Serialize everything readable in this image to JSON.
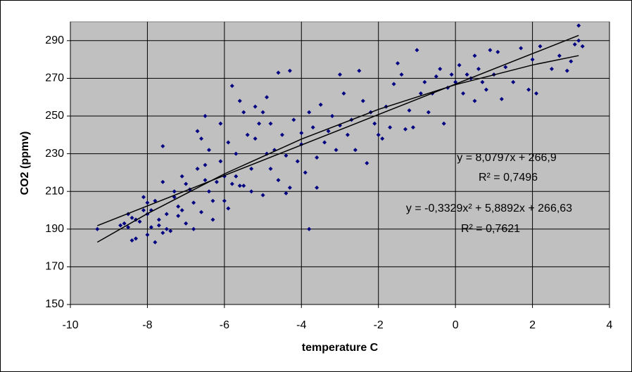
{
  "chart_data": {
    "type": "scatter",
    "xlabel": "temperature C",
    "ylabel": "CO2 (ppmv)",
    "xlim": [
      -10,
      4
    ],
    "xticks": [
      -10,
      -8,
      -6,
      -4,
      -2,
      0,
      2,
      4
    ],
    "ylim": [
      150,
      300
    ],
    "yticks": [
      150,
      170,
      190,
      210,
      230,
      250,
      270,
      290
    ],
    "grid": true,
    "plot_background": "#c0c0c0",
    "points": {
      "color": "#000080",
      "x": [
        -9.3,
        -8.7,
        -8.6,
        -8.5,
        -8.5,
        -8.4,
        -8.4,
        -8.3,
        -8.3,
        -8.2,
        -8.1,
        -8.1,
        -8.0,
        -8.0,
        -8.0,
        -7.9,
        -7.9,
        -7.8,
        -7.8,
        -7.7,
        -7.7,
        -7.6,
        -7.6,
        -7.6,
        -7.5,
        -7.5,
        -7.4,
        -7.3,
        -7.3,
        -7.2,
        -7.2,
        -7.1,
        -7.1,
        -7.0,
        -7.0,
        -6.9,
        -6.8,
        -6.8,
        -6.7,
        -6.7,
        -6.6,
        -6.6,
        -6.5,
        -6.5,
        -6.5,
        -6.4,
        -6.4,
        -6.3,
        -6.3,
        -6.2,
        -6.1,
        -6.1,
        -6.0,
        -6.0,
        -5.9,
        -5.9,
        -5.8,
        -5.8,
        -5.7,
        -5.7,
        -5.6,
        -5.6,
        -5.5,
        -5.5,
        -5.4,
        -5.3,
        -5.3,
        -5.2,
        -5.2,
        -5.1,
        -5.0,
        -5.0,
        -4.9,
        -4.9,
        -4.8,
        -4.8,
        -4.7,
        -4.6,
        -4.6,
        -4.5,
        -4.4,
        -4.4,
        -4.3,
        -4.3,
        -4.2,
        -4.1,
        -4.0,
        -4.0,
        -3.9,
        -3.8,
        -3.8,
        -3.7,
        -3.6,
        -3.6,
        -3.5,
        -3.4,
        -3.3,
        -3.2,
        -3.1,
        -3.0,
        -3.0,
        -2.9,
        -2.8,
        -2.7,
        -2.6,
        -2.5,
        -2.4,
        -2.3,
        -2.2,
        -2.1,
        -2.0,
        -1.9,
        -1.8,
        -1.7,
        -1.6,
        -1.5,
        -1.4,
        -1.3,
        -1.2,
        -1.1,
        -1.0,
        -0.9,
        -0.8,
        -0.7,
        -0.6,
        -0.5,
        -0.4,
        -0.3,
        -0.2,
        -0.1,
        0.0,
        0.1,
        0.2,
        0.3,
        0.4,
        0.5,
        0.5,
        0.6,
        0.7,
        0.8,
        0.9,
        1.0,
        1.1,
        1.2,
        1.3,
        1.5,
        1.7,
        1.9,
        2.0,
        2.1,
        2.2,
        2.5,
        2.7,
        2.9,
        3.0,
        3.1,
        3.2,
        3.2,
        3.3
      ],
      "values": [
        190,
        192,
        193,
        191,
        198,
        196,
        184,
        185,
        195,
        194,
        200,
        207,
        204,
        198,
        187,
        191,
        200,
        205,
        183,
        195,
        192,
        234,
        188,
        215,
        198,
        190,
        189,
        210,
        207,
        202,
        197,
        218,
        200,
        214,
        193,
        211,
        204,
        190,
        242,
        222,
        238,
        199,
        250,
        224,
        216,
        232,
        210,
        195,
        205,
        215,
        246,
        226,
        218,
        205,
        236,
        201,
        214,
        266,
        230,
        218,
        258,
        213,
        252,
        213,
        240,
        222,
        210,
        255,
        238,
        246,
        252,
        208,
        230,
        260,
        246,
        222,
        232,
        273,
        216,
        240,
        229,
        209,
        274,
        212,
        248,
        226,
        235,
        241,
        220,
        252,
        190,
        244,
        228,
        212,
        256,
        236,
        242,
        250,
        232,
        272,
        245,
        262,
        240,
        248,
        232,
        274,
        258,
        225,
        252,
        246,
        240,
        238,
        255,
        244,
        267,
        278,
        272,
        243,
        253,
        244,
        285,
        262,
        268,
        252,
        262,
        271,
        275,
        246,
        265,
        272,
        268,
        277,
        262,
        272,
        270,
        258,
        282,
        275,
        268,
        264,
        285,
        272,
        284,
        259,
        276,
        268,
        286,
        264,
        280,
        262,
        287,
        275,
        282,
        274,
        279,
        288,
        298,
        290,
        287
      ]
    },
    "trendlines": [
      {
        "color": "#000000",
        "x": [
          -9.3,
          3.2
        ],
        "values": [
          191.8,
          292.8
        ]
      },
      {
        "color": "#000000",
        "x": [
          -9.3,
          -8,
          -6,
          -4,
          -2,
          0,
          2,
          3.2
        ],
        "values": [
          183.07,
          198.21,
          219.31,
          237.74,
          253.52,
          266.63,
          277.08,
          282.07
        ]
      }
    ],
    "annotations": [
      "y = 8,0797x + 266,9",
      "R² = 0,7496",
      "y = -0,3329x² + 5,8892x + 266,63",
      "R² = 0,7621"
    ]
  }
}
